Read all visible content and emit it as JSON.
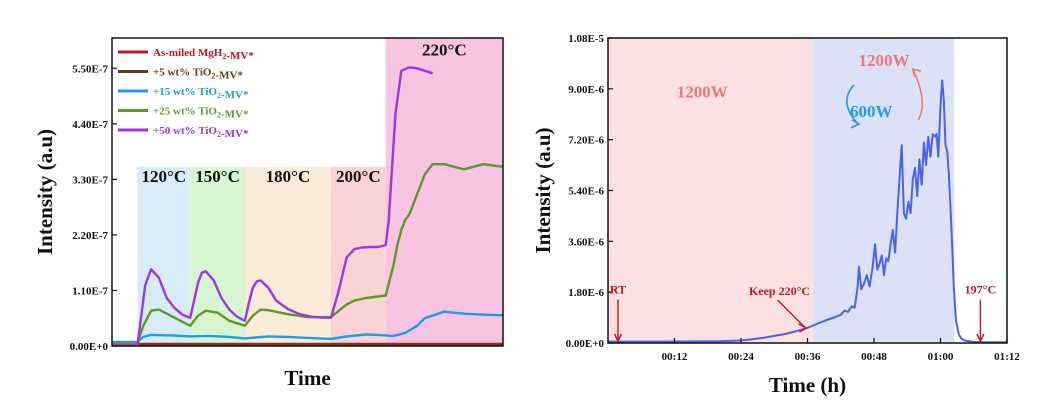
{
  "chart_data": [
    {
      "type": "line",
      "xlabel": "Time",
      "ylabel": "Intensity (a.u)",
      "ylim": [
        0,
        6.1e-07
      ],
      "yticks": [
        "0.00E+0",
        "1.10E-7",
        "2.20E-7",
        "3.30E-7",
        "4.40E-7",
        "5.50E-7"
      ],
      "ytick_values": [
        0,
        1.1e-07,
        2.2e-07,
        3.3e-07,
        4.4e-07,
        5.5e-07
      ],
      "x_range": [
        0,
        100
      ],
      "grid": false,
      "legend_position": "top-left",
      "temperature_stages": [
        {
          "label": "120°C",
          "start": 6.5,
          "end": 20,
          "color": "#d8ecf8"
        },
        {
          "label": "150°C",
          "start": 20,
          "end": 34,
          "color": "#d8f5d2"
        },
        {
          "label": "180°C",
          "start": 34,
          "end": 56,
          "color": "#faecd8"
        },
        {
          "label": "200°C",
          "start": 56,
          "end": 70,
          "color": "#f8d4d4"
        },
        {
          "label": "220°C",
          "start": 70,
          "end": 100,
          "color": "#f8c4e2"
        }
      ],
      "series": [
        {
          "name": "As-miled MgH2-MV*",
          "color": "#c0181e",
          "x": [
            0,
            100
          ],
          "y": [
            4e-09,
            4e-09
          ]
        },
        {
          "name": "+5 wt% TiO2-MV*",
          "color": "#6b3a1a",
          "x": [
            0,
            100
          ],
          "y": [
            2e-09,
            2e-09
          ]
        },
        {
          "name": "+15 wt% TiO2-MV*",
          "color": "#1e9ce8",
          "x": [
            0,
            6.5,
            8,
            10,
            15,
            20,
            25,
            30,
            34,
            40,
            45,
            50,
            56,
            60,
            65,
            70,
            72,
            75,
            78,
            80,
            85,
            90,
            95,
            100
          ],
          "y": [
            8e-09,
            8e-09,
            1.8e-08,
            2.2e-08,
            2.1e-08,
            1.9e-08,
            2e-08,
            1.8e-08,
            1.5e-08,
            1.9e-08,
            1.8e-08,
            1.6e-08,
            1.4e-08,
            1.9e-08,
            2.3e-08,
            2.1e-08,
            2e-08,
            2.6e-08,
            4e-08,
            5.5e-08,
            6.8e-08,
            6.4e-08,
            6.2e-08,
            6.1e-08
          ]
        },
        {
          "name": "+25 wt% TiO2-MV*",
          "color": "#5c9a28",
          "x": [
            0,
            6.5,
            8,
            10,
            12,
            15,
            18,
            20,
            22,
            24,
            27,
            30,
            34,
            36,
            38,
            40,
            45,
            50,
            55,
            56,
            58,
            60,
            62,
            65,
            68,
            70,
            72,
            73,
            74,
            75,
            76,
            78,
            80,
            82,
            85,
            90,
            95,
            100
          ],
          "y": [
            6e-09,
            6e-09,
            4e-08,
            7e-08,
            7.2e-08,
            6e-08,
            4.8e-08,
            4e-08,
            6e-08,
            7e-08,
            6.6e-08,
            5e-08,
            4e-08,
            6e-08,
            7.2e-08,
            7.1e-08,
            6.3e-08,
            5.7e-08,
            5.7e-08,
            5.7e-08,
            7e-08,
            8.2e-08,
            9e-08,
            9.5e-08,
            9.8e-08,
            1e-07,
            1.6e-07,
            2e-07,
            2.3e-07,
            2.5e-07,
            2.6e-07,
            3e-07,
            3.4e-07,
            3.6e-07,
            3.6e-07,
            3.5e-07,
            3.6e-07,
            3.55e-07
          ]
        },
        {
          "name": "+50 wt% TiO2-MV*",
          "color": "#9b38e0",
          "x": [
            0,
            6.5,
            7.5,
            8.5,
            10,
            12,
            14,
            16,
            18,
            20,
            21,
            22,
            23,
            24,
            26,
            28,
            30,
            32,
            34,
            35,
            36,
            37,
            38,
            40,
            42,
            45,
            48,
            51,
            54,
            56,
            58,
            60,
            62,
            64,
            66,
            68,
            70,
            70.8,
            71.5,
            72.5,
            74,
            76,
            78,
            80,
            82
          ],
          "y": [
            2e-09,
            2e-09,
            6e-08,
            1.2e-07,
            1.52e-07,
            1.35e-07,
            9.5e-08,
            7.5e-08,
            6.2e-08,
            5.6e-08,
            9e-08,
            1.25e-07,
            1.45e-07,
            1.48e-07,
            1.3e-07,
            9.5e-08,
            7.2e-08,
            5.8e-08,
            5e-08,
            8.5e-08,
            1.15e-07,
            1.28e-07,
            1.3e-07,
            1.15e-07,
            9e-08,
            7.3e-08,
            6.3e-08,
            5.8e-08,
            5.6e-08,
            5.6e-08,
            1.1e-07,
            1.75e-07,
            1.92e-07,
            1.95e-07,
            1.96e-07,
            1.96e-07,
            2e-07,
            2.5e-07,
            3.4e-07,
            4.6e-07,
            5.45e-07,
            5.52e-07,
            5.5e-07,
            5.45e-07,
            5.4e-07
          ]
        }
      ],
      "temp_label_y": [
        3.25e-07,
        3.25e-07,
        3.25e-07,
        3.25e-07,
        5.75e-07
      ]
    },
    {
      "type": "line",
      "xlabel": "Time (h)",
      "ylabel": "Intensity (a.u)",
      "xlim": [
        0,
        72
      ],
      "ylim": [
        0,
        1.08e-05
      ],
      "xticks": [
        "00:12",
        "00:24",
        "00:36",
        "00:48",
        "01:00",
        "01:12"
      ],
      "xtick_values": [
        12,
        24,
        36,
        48,
        60,
        72
      ],
      "yticks": [
        "0.00E+0",
        "1.80E-6",
        "3.60E-6",
        "5.40E-6",
        "7.20E-6",
        "9.00E-6",
        "1.08E-5"
      ],
      "ytick_values": [
        0,
        1.8e-06,
        3.6e-06,
        5.4e-06,
        7.2e-06,
        9e-06,
        1.08e-05
      ],
      "grid": false,
      "regions": [
        {
          "label": "1200W",
          "start": 0,
          "end": 37,
          "color": "#fbe1e1"
        },
        {
          "label": "1200W",
          "label2": "600W",
          "start": 37,
          "end": 62.5,
          "color": "#dde1f8"
        }
      ],
      "power_colors": {
        "high": "#f07878",
        "low": "#1e9ce8"
      },
      "series": [
        {
          "name": "",
          "color": "#4a63e8",
          "x": [
            0,
            10,
            20,
            24,
            26,
            28,
            30,
            32,
            34,
            36,
            37,
            38,
            39,
            40,
            41,
            42,
            42.7,
            43.3,
            44,
            44.5,
            45,
            45.3,
            45.7,
            46.2,
            46.7,
            47.2,
            47.7,
            48.2,
            48.6,
            49,
            49.4,
            49.8,
            50.2,
            50.6,
            51,
            51.4,
            51.8,
            52.2,
            52.6,
            53,
            53.4,
            53.8,
            54.2,
            54.6,
            55,
            55.4,
            55.8,
            56.2,
            56.6,
            57,
            57.4,
            57.8,
            58.2,
            58.6,
            59,
            59.3,
            59.6,
            60,
            60.3,
            60.6,
            60.9,
            61.2,
            61.5,
            61.8,
            62.1,
            62.4,
            62.8,
            63.3,
            63.8,
            64.5,
            66,
            68,
            70,
            72
          ],
          "y": [
            5e-08,
            5e-08,
            6e-08,
            9e-08,
            1.3e-07,
            1.8e-07,
            2.5e-07,
            3.2e-07,
            4.2e-07,
            5.4e-07,
            6.2e-07,
            7e-07,
            7.8e-07,
            8.5e-07,
            9.2e-07,
            1e-06,
            1.15e-06,
            1.1e-06,
            1.3e-06,
            1.25e-06,
            1.9e-06,
            2.7e-06,
            1.9e-06,
            2.1e-06,
            2.4e-06,
            2e-06,
            2.6e-06,
            3.5e-06,
            2.6e-06,
            2.8e-06,
            3.1e-06,
            2.4e-06,
            3e-06,
            2.9e-06,
            3.5e-06,
            4e-06,
            3.2e-06,
            4.6e-06,
            5.8e-06,
            7e-06,
            4.6e-06,
            4.4e-06,
            5e-06,
            4.6e-06,
            5.8e-06,
            6.2e-06,
            5.2e-06,
            6.5e-06,
            5.6e-06,
            7.1e-06,
            6.3e-06,
            7.3e-06,
            6.6e-06,
            7.4e-06,
            7.3e-06,
            7.4e-06,
            6.6e-06,
            8.4e-06,
            9.3e-06,
            8.6e-06,
            7e-06,
            6.8e-06,
            6e-06,
            4.8e-06,
            3.5e-06,
            2e-06,
            8e-07,
            3e-07,
            1.5e-07,
            8e-08,
            4e-08,
            3e-08,
            3e-08,
            3e-08
          ]
        }
      ],
      "annotations": [
        {
          "text": "RT",
          "x": 1.8
        },
        {
          "text": "Keep 220°C",
          "x": 36
        },
        {
          "text": "197°C",
          "x": 67.2
        }
      ]
    }
  ]
}
